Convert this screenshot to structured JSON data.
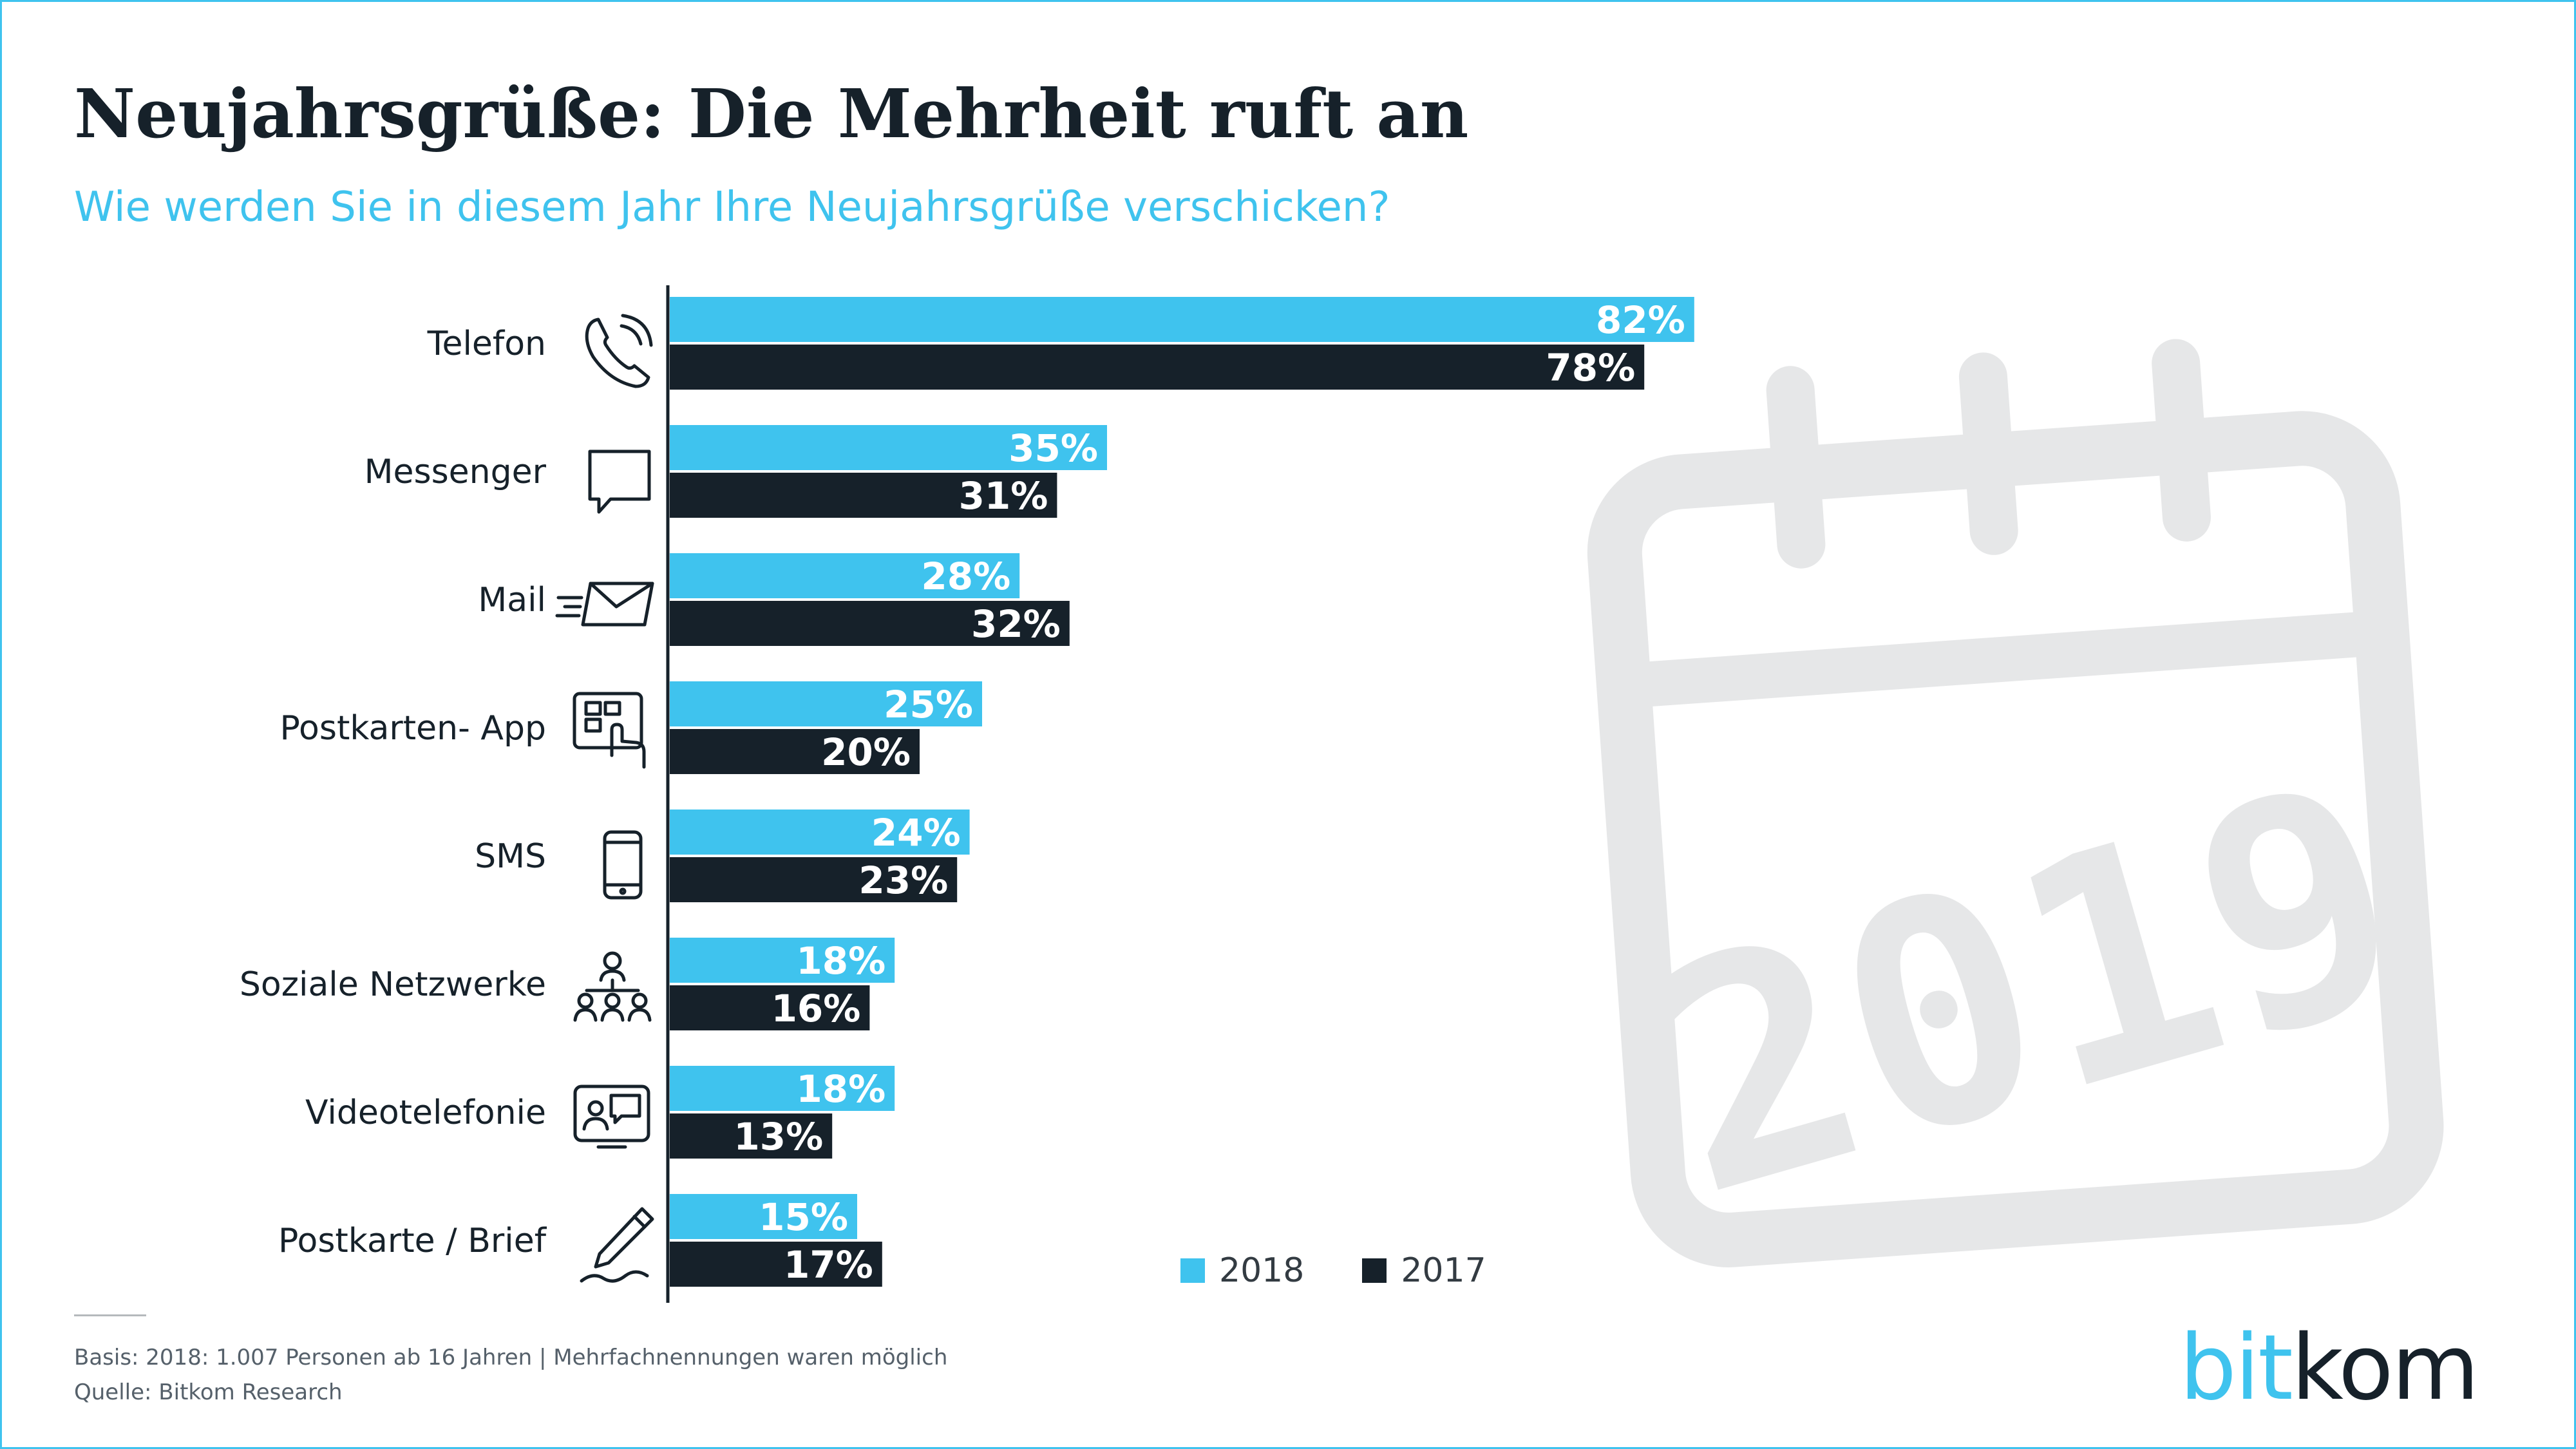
{
  "header": {
    "title": "Neujahrsgrüße: Die Mehrheit ruft an",
    "subtitle": "Wie werden Sie in diesem Jahr Ihre Neujahrsgrüße verschicken?"
  },
  "colors": {
    "series_2018": "#3fc3ee",
    "series_2017": "#16212a",
    "text_dark": "#16212a",
    "watermark": "#e6e7e8"
  },
  "icons": [
    "phone-icon",
    "chat-bubble-icon",
    "mail-icon",
    "tablet-touch-icon",
    "smartphone-icon",
    "social-network-icon",
    "video-call-icon",
    "pen-writing-icon",
    "calendar-icon"
  ],
  "watermark": {
    "year": "2019"
  },
  "chart_data": {
    "type": "bar",
    "orientation": "horizontal",
    "categories": [
      "Telefon",
      "Messenger",
      "Mail",
      "Postkarten- App",
      "SMS",
      "Soziale Netzwerke",
      "Videotelefonie",
      "Postkarte / Brief"
    ],
    "series": [
      {
        "name": "2018",
        "values": [
          82,
          35,
          28,
          25,
          24,
          18,
          18,
          15
        ],
        "labels": [
          "82%",
          "35%",
          "28%",
          "25%",
          "24%",
          "18%",
          "18%",
          "15%"
        ]
      },
      {
        "name": "2017",
        "values": [
          78,
          31,
          32,
          20,
          23,
          16,
          13,
          17
        ],
        "labels": [
          "78%",
          "31%",
          "32%",
          "20%",
          "23%",
          "16%",
          "13%",
          "17%"
        ]
      }
    ],
    "xlim": [
      0,
      100
    ],
    "unit": "%",
    "grid": false,
    "legend_position": "bottom-right"
  },
  "legend": [
    {
      "label": "2018"
    },
    {
      "label": "2017"
    }
  ],
  "footer": {
    "basis": "Basis: 2018: 1.007 Personen ab 16 Jahren | Mehrfachnennungen waren möglich",
    "source": "Quelle: Bitkom Research"
  },
  "logo": {
    "part1": "bit",
    "part2": "kom"
  }
}
